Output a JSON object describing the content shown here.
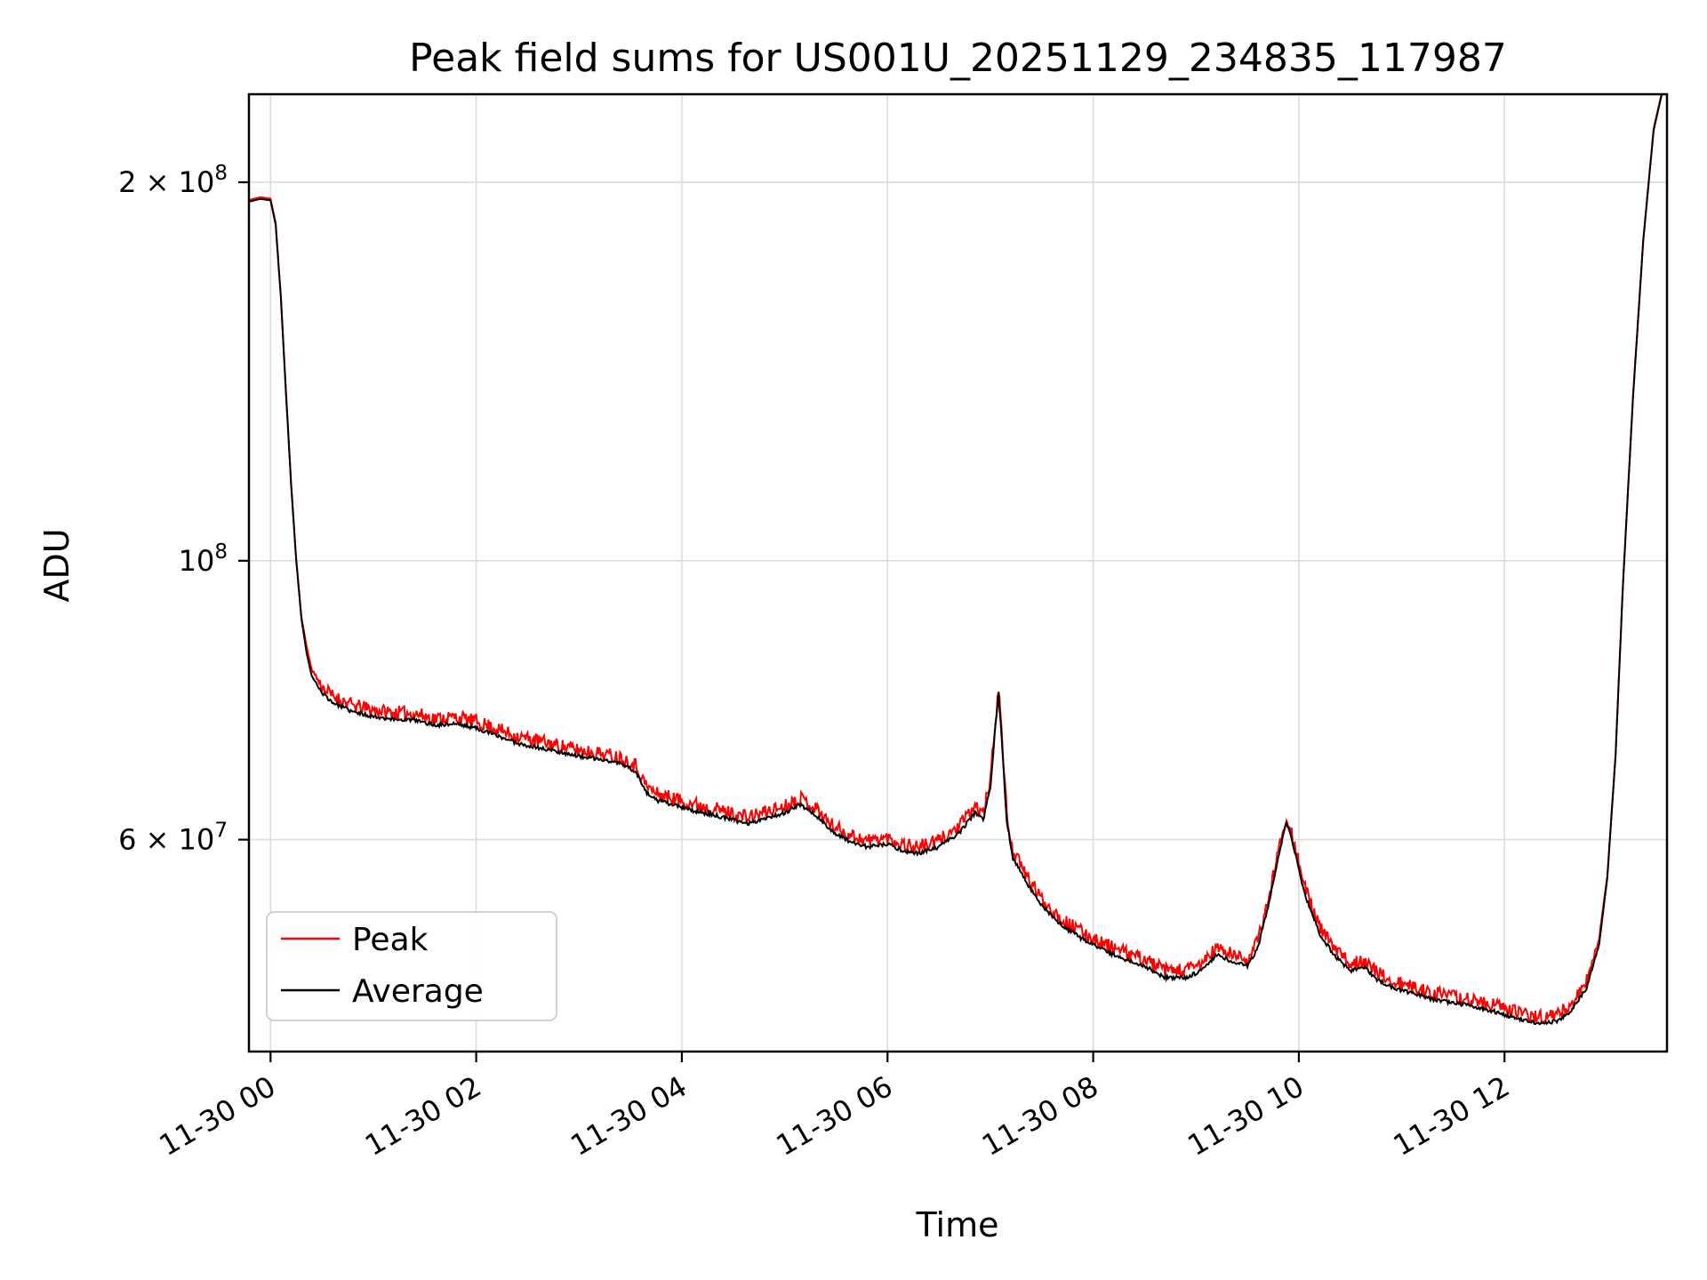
{
  "title": "Peak field sums for US001U_20251129_234835_117987",
  "chart_data": {
    "type": "line",
    "title": "Peak field sums for US001U_20251129_234835_117987",
    "xlabel": "Time",
    "ylabel": "ADU",
    "yscale": "log",
    "grid": true,
    "x_unit": "hours after 11-30 00:00",
    "xlim": [
      -0.21,
      13.58
    ],
    "ylim": [
      40700000.0,
      235000000.0
    ],
    "x_ticks": [
      {
        "t": 0,
        "label": "11-30 00"
      },
      {
        "t": 2,
        "label": "11-30 02"
      },
      {
        "t": 4,
        "label": "11-30 04"
      },
      {
        "t": 6,
        "label": "11-30 06"
      },
      {
        "t": 8,
        "label": "11-30 08"
      },
      {
        "t": 10,
        "label": "11-30 10"
      },
      {
        "t": 12,
        "label": "11-30 12"
      }
    ],
    "y_ticks": [
      {
        "v": 200000000.0,
        "base": "2 × 10",
        "exp": "8"
      },
      {
        "v": 100000000.0,
        "base": "10",
        "exp": "8"
      },
      {
        "v": 60000000.0,
        "base": "6 × 10",
        "exp": "7"
      }
    ],
    "legend": {
      "position": "lower left",
      "entries": [
        {
          "label": "Peak",
          "color": "#ff0000"
        },
        {
          "label": "Average",
          "color": "#000000"
        }
      ]
    },
    "x_hours": [
      -0.21,
      -0.1,
      0,
      0.05,
      0.1,
      0.15,
      0.2,
      0.25,
      0.3,
      0.35,
      0.4,
      0.5,
      0.6,
      0.8,
      1,
      1.2,
      1.4,
      1.6,
      1.8,
      2,
      2.2,
      2.4,
      2.6,
      2.8,
      3,
      3.2,
      3.4,
      3.55,
      3.65,
      3.75,
      3.9,
      4.1,
      4.3,
      4.5,
      4.65,
      4.8,
      5,
      5.15,
      5.3,
      5.45,
      5.6,
      5.8,
      6,
      6.15,
      6.3,
      6.5,
      6.7,
      6.85,
      6.93,
      7,
      7.05,
      7.08,
      7.12,
      7.16,
      7.22,
      7.35,
      7.5,
      7.7,
      7.9,
      8.1,
      8.3,
      8.5,
      8.7,
      8.9,
      9.05,
      9.2,
      9.35,
      9.5,
      9.6,
      9.7,
      9.8,
      9.88,
      9.95,
      10.05,
      10.2,
      10.35,
      10.5,
      10.62,
      10.75,
      10.9,
      11.1,
      11.3,
      11.5,
      11.7,
      11.9,
      12.1,
      12.3,
      12.5,
      12.65,
      12.8,
      12.92,
      13,
      13.08,
      13.15,
      13.25,
      13.35,
      13.45,
      13.58
    ],
    "series": [
      {
        "name": "Peak",
        "color": "#ff0000",
        "width": 2,
        "noise": 0.013,
        "seed": 11,
        "values": [
          193600000.0,
          194600000.0,
          194100000.0,
          185600000.0,
          162500000.0,
          136400000.0,
          115300000.0,
          100300000.0,
          90300000.0,
          85500000.0,
          82000000.0,
          79400000.0,
          78100000.0,
          76700000.0,
          76100000.0,
          75700000.0,
          75600000.0,
          74900000.0,
          75100000.0,
          74500000.0,
          73500000.0,
          72500000.0,
          71900000.0,
          71300000.0,
          70700000.0,
          70300000.0,
          69800000.0,
          68800000.0,
          66300000.0,
          65300000.0,
          64800000.0,
          64100000.0,
          63600000.0,
          62900000.0,
          62500000.0,
          63100000.0,
          63800000.0,
          64800000.0,
          63600000.0,
          61700000.0,
          60700000.0,
          59900000.0,
          60200000.0,
          59500000.0,
          59200000.0,
          59900000.0,
          61500000.0,
          63800000.0,
          62900000.0,
          66800000.0,
          74900000.0,
          79400000.0,
          70800000.0,
          62700000.0,
          58700000.0,
          56200000.0,
          53800000.0,
          51800000.0,
          50600000.0,
          49600000.0,
          48800000.0,
          48200000.0,
          47200000.0,
          47200000.0,
          47800000.0,
          49200000.0,
          48600000.0,
          48200000.0,
          49800000.0,
          53600000.0,
          58700000.0,
          62700000.0,
          59900000.0,
          55200000.0,
          51100000.0,
          49100000.0,
          47800000.0,
          48200000.0,
          47100000.0,
          46300000.0,
          45800000.0,
          45300000.0,
          45000000.0,
          44700000.0,
          44300000.0,
          43800000.0,
          43400000.0,
          43500000.0,
          44300000.0,
          46300000.0,
          50100000.0,
          56200000.0,
          70200000.0,
          95300000.0,
          135400000.0,
          180500000.0,
          220700000.0,
          245700000.0
        ]
      },
      {
        "name": "Average",
        "color": "#000000",
        "width": 2,
        "noise": 0.0035,
        "seed": 23,
        "values": [
          193000000.0,
          194000000.0,
          193500000.0,
          185000000.0,
          162000000.0,
          136000000.0,
          115000000.0,
          100000000.0,
          90000000.0,
          84500000.0,
          81000000.0,
          78500000.0,
          77200000.0,
          75800000.0,
          75200000.0,
          74800000.0,
          74700000.0,
          74000000.0,
          74200000.0,
          73600000.0,
          72600000.0,
          71600000.0,
          71000000.0,
          70500000.0,
          69900000.0,
          69500000.0,
          69000000.0,
          68000000.0,
          65500000.0,
          64500000.0,
          64000000.0,
          63300000.0,
          62800000.0,
          62200000.0,
          61800000.0,
          62400000.0,
          63000000.0,
          64000000.0,
          62800000.0,
          61000000.0,
          60000000.0,
          59200000.0,
          59500000.0,
          58800000.0,
          58500000.0,
          59200000.0,
          60800000.0,
          63000000.0,
          62200000.0,
          66000000.0,
          74000000.0,
          78500000.0,
          70000000.0,
          62000000.0,
          58000000.0,
          55500000.0,
          53200000.0,
          51200000.0,
          50000000.0,
          49000000.0,
          48200000.0,
          47600000.0,
          46600000.0,
          46600000.0,
          47200000.0,
          48600000.0,
          48000000.0,
          47600000.0,
          49200000.0,
          53000000.0,
          58000000.0,
          62000000.0,
          59200000.0,
          54500000.0,
          50500000.0,
          48500000.0,
          47200000.0,
          47600000.0,
          46500000.0,
          45800000.0,
          45300000.0,
          44800000.0,
          44500000.0,
          44200000.0,
          43800000.0,
          43300000.0,
          42900000.0,
          43000000.0,
          43800000.0,
          45800000.0,
          49500000.0,
          56000000.0,
          70000000.0,
          95000000.0,
          135000000.0,
          180000000.0,
          220000000.0,
          245000000.0
        ]
      }
    ]
  }
}
